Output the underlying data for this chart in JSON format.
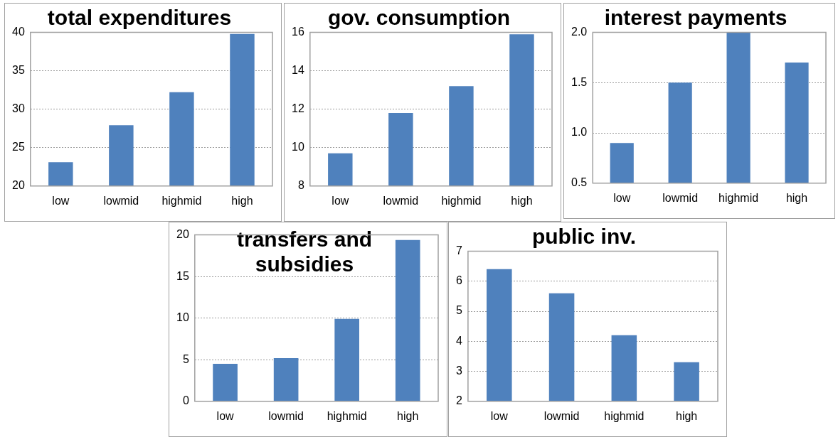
{
  "chart_data": [
    {
      "type": "bar",
      "title": "total expenditures",
      "categories": [
        "low",
        "lowmid",
        "highmid",
        "high"
      ],
      "values": [
        23.1,
        27.9,
        32.2,
        39.8
      ],
      "color": "#4f81bd",
      "ylim": [
        20,
        40
      ],
      "yticks": [
        20,
        25,
        30,
        35,
        40
      ],
      "grid": "y",
      "legend": false
    },
    {
      "type": "bar",
      "title": "gov. consumption",
      "categories": [
        "low",
        "lowmid",
        "highmid",
        "high"
      ],
      "values": [
        9.7,
        11.8,
        13.2,
        15.9
      ],
      "color": "#4f81bd",
      "ylim": [
        8,
        16
      ],
      "yticks": [
        8,
        10,
        12,
        14,
        16
      ],
      "grid": "y",
      "legend": false
    },
    {
      "type": "bar",
      "title": "interest payments",
      "categories": [
        "low",
        "lowmid",
        "highmid",
        "high"
      ],
      "values": [
        0.9,
        1.5,
        2.0,
        1.7
      ],
      "color": "#4f81bd",
      "ylim": [
        0.5,
        2.0
      ],
      "yticks": [
        {
          "value": 0.5,
          "label": "0.5"
        },
        {
          "value": 1.0,
          "label": "1.0"
        },
        {
          "value": 1.5,
          "label": "1.5"
        },
        {
          "value": 2.0,
          "label": "2.0"
        }
      ],
      "grid": "y",
      "legend": false
    },
    {
      "type": "bar",
      "title": "transfers and subsidies",
      "categories": [
        "low",
        "lowmid",
        "highmid",
        "high"
      ],
      "values": [
        4.5,
        5.2,
        9.9,
        19.4
      ],
      "color": "#4f81bd",
      "ylim": [
        0,
        20
      ],
      "yticks": [
        0,
        5,
        10,
        15,
        20
      ],
      "grid": "y",
      "legend": false
    },
    {
      "type": "bar",
      "title": "public inv.",
      "categories": [
        "low",
        "lowmid",
        "highmid",
        "high"
      ],
      "values": [
        6.4,
        5.6,
        4.2,
        3.3
      ],
      "color": "#4f81bd",
      "ylim": [
        2,
        7
      ],
      "yticks": [
        2,
        3,
        4,
        5,
        6,
        7
      ],
      "grid": "y",
      "legend": false
    }
  ]
}
